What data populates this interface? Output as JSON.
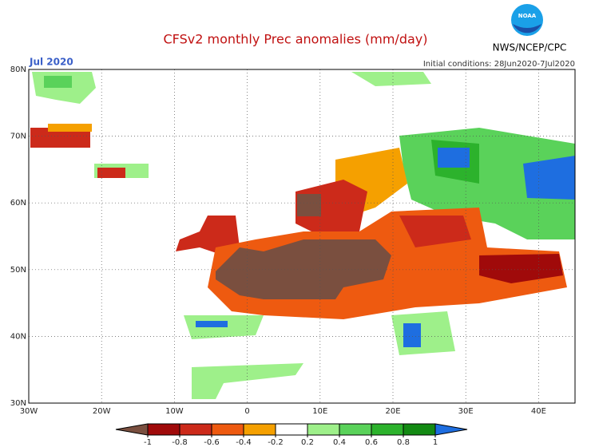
{
  "header": {
    "title": "CFSv2 monthly Prec anomalies (mm/day)",
    "month": "Jul 2020",
    "initial_conditions": "Initial conditions: 28Jun2020-7Jul2020",
    "agency": "NWS/NCEP/CPC",
    "logo": "NOAA"
  },
  "map": {
    "lon_range": [
      -30,
      45
    ],
    "lat_range": [
      30,
      80
    ],
    "lat_ticks": [
      {
        "value": 80,
        "label": "80N"
      },
      {
        "value": 70,
        "label": "70N"
      },
      {
        "value": 60,
        "label": "60N"
      },
      {
        "value": 50,
        "label": "50N"
      },
      {
        "value": 40,
        "label": "40N"
      },
      {
        "value": 30,
        "label": "30N"
      }
    ],
    "lon_ticks": [
      {
        "value": -30,
        "label": "30W"
      },
      {
        "value": -20,
        "label": "20W"
      },
      {
        "value": -10,
        "label": "10W"
      },
      {
        "value": 0,
        "label": "0"
      },
      {
        "value": 10,
        "label": "10E"
      },
      {
        "value": 20,
        "label": "20E"
      },
      {
        "value": 30,
        "label": "30E"
      },
      {
        "value": 40,
        "label": "40E"
      }
    ]
  },
  "colorbar": {
    "ticks": [
      -1,
      -0.8,
      -0.6,
      -0.4,
      -0.2,
      0.2,
      0.4,
      0.6,
      0.8,
      1
    ],
    "colors": [
      "#7a4f3f",
      "#a00a0a",
      "#cc2a1a",
      "#ee5a10",
      "#f5a000",
      "#ffffff",
      "#9ef08a",
      "#5ad25a",
      "#2cb22c",
      "#138a13",
      "#1e6ee0"
    ]
  }
}
